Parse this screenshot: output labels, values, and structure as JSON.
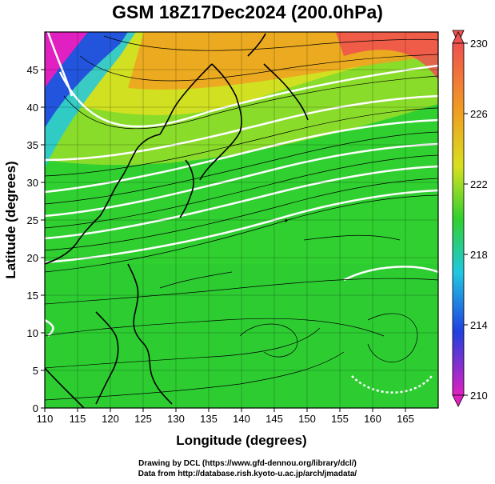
{
  "title": "GSM 18Z17Dec2024 (200.0hPa)",
  "axes": {
    "xlabel": "Longitude (degrees)",
    "ylabel": "Latitude  (degrees)",
    "x_ticks": [
      110,
      115,
      120,
      125,
      130,
      135,
      140,
      145,
      150,
      155,
      160,
      165
    ],
    "y_ticks": [
      0,
      5,
      10,
      15,
      20,
      25,
      30,
      35,
      40,
      45
    ],
    "xlim": [
      110,
      170
    ],
    "ylim": [
      0,
      50
    ]
  },
  "colorbar": {
    "ticks": [
      230,
      226,
      222,
      218,
      214,
      210
    ],
    "min": 210,
    "max": 230
  },
  "credits": {
    "line1": "Drawing by DCL (https://www.gfd-dennou.org/library/dcl/)",
    "line2": "Data from http://database.rish.kyoto-u.ac.jp/arch/jmadata/"
  },
  "chart_data": {
    "type": "heatmap",
    "title": "GSM 18Z17Dec2024 (200.0hPa)",
    "xlabel": "Longitude (degrees)",
    "ylabel": "Latitude  (degrees)",
    "xlim": [
      110,
      170
    ],
    "ylim": [
      0,
      50
    ],
    "colorbar_range": [
      210,
      230
    ],
    "colors": {
      "magenta": "#e020c0",
      "blue": "#2040e0",
      "cyan": "#20c8e0",
      "green": "#30d030",
      "yellow": "#d8e020",
      "orange": "#f0a020",
      "red": "#f05050",
      "contour": "#ffffff",
      "coastline": "#000000"
    },
    "grid": true,
    "overlays": [
      "wind streamlines",
      "white contours",
      "coastlines"
    ]
  }
}
